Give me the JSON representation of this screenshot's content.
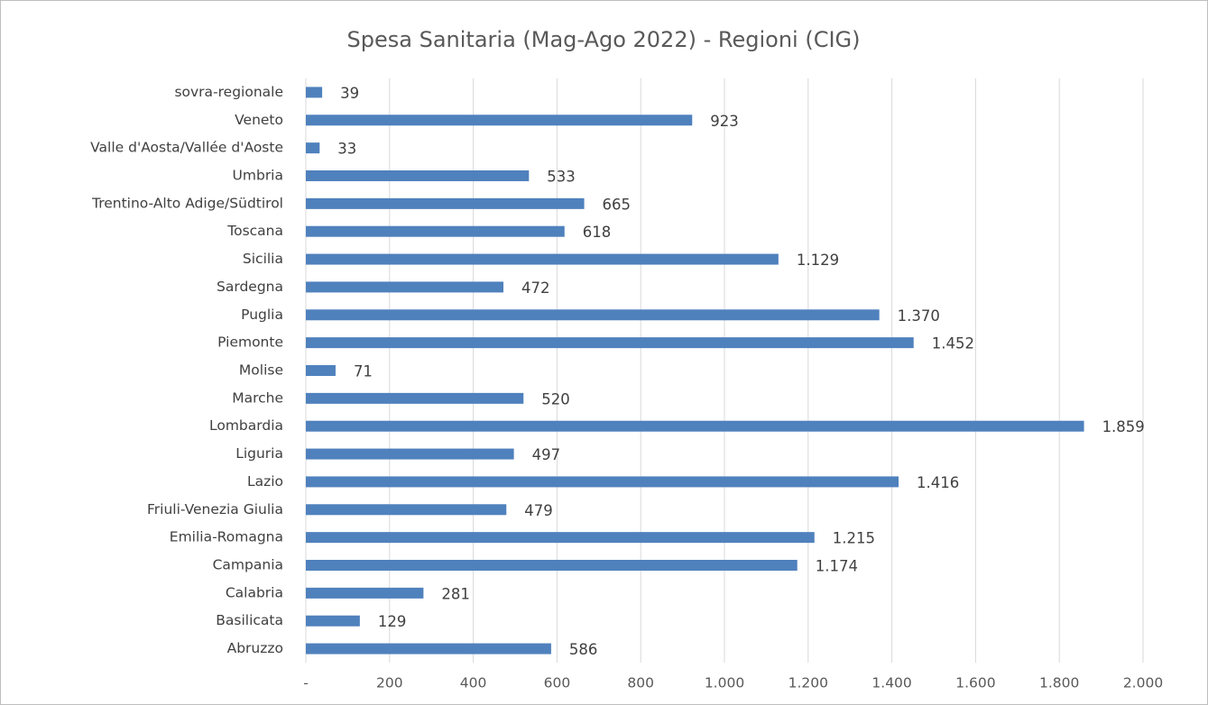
{
  "chart_data": {
    "type": "bar",
    "orientation": "horizontal",
    "title": "Spesa Sanitaria (Mag-Ago 2022) - Regioni (CIG)",
    "categories": [
      "sovra-regionale",
      "Veneto",
      "Valle d'Aosta/Vallée d'Aoste",
      "Umbria",
      "Trentino-Alto Adige/Südtirol",
      "Toscana",
      "Sicilia",
      "Sardegna",
      "Puglia",
      "Piemonte",
      "Molise",
      "Marche",
      "Lombardia",
      "Liguria",
      "Lazio",
      "Friuli-Venezia Giulia",
      "Emilia-Romagna",
      "Campania",
      "Calabria",
      "Basilicata",
      "Abruzzo"
    ],
    "values": [
      39,
      923,
      33,
      533,
      665,
      618,
      1129,
      472,
      1370,
      1452,
      71,
      520,
      1859,
      497,
      1416,
      479,
      1215,
      1174,
      281,
      129,
      586
    ],
    "value_labels": [
      "39",
      "923",
      "33",
      "533",
      "665",
      "618",
      "1.129",
      "472",
      "1.370",
      "1.452",
      "71",
      "520",
      "1.859",
      "497",
      "1.416",
      "479",
      "1.215",
      "1.174",
      "281",
      "129",
      "586"
    ],
    "color": "#4f81bd",
    "xlim": [
      0,
      2000
    ],
    "xticks": [
      {
        "value": 0,
        "label": "-"
      },
      200,
      400,
      600,
      800,
      {
        "value": 1000,
        "label": "1.000"
      },
      {
        "value": 1200,
        "label": "1.200"
      },
      {
        "value": 1400,
        "label": "1.400"
      },
      {
        "value": 1600,
        "label": "1.600"
      },
      {
        "value": 1800,
        "label": "1.800"
      },
      {
        "value": 2000,
        "label": "2.000"
      }
    ],
    "grid": true
  }
}
